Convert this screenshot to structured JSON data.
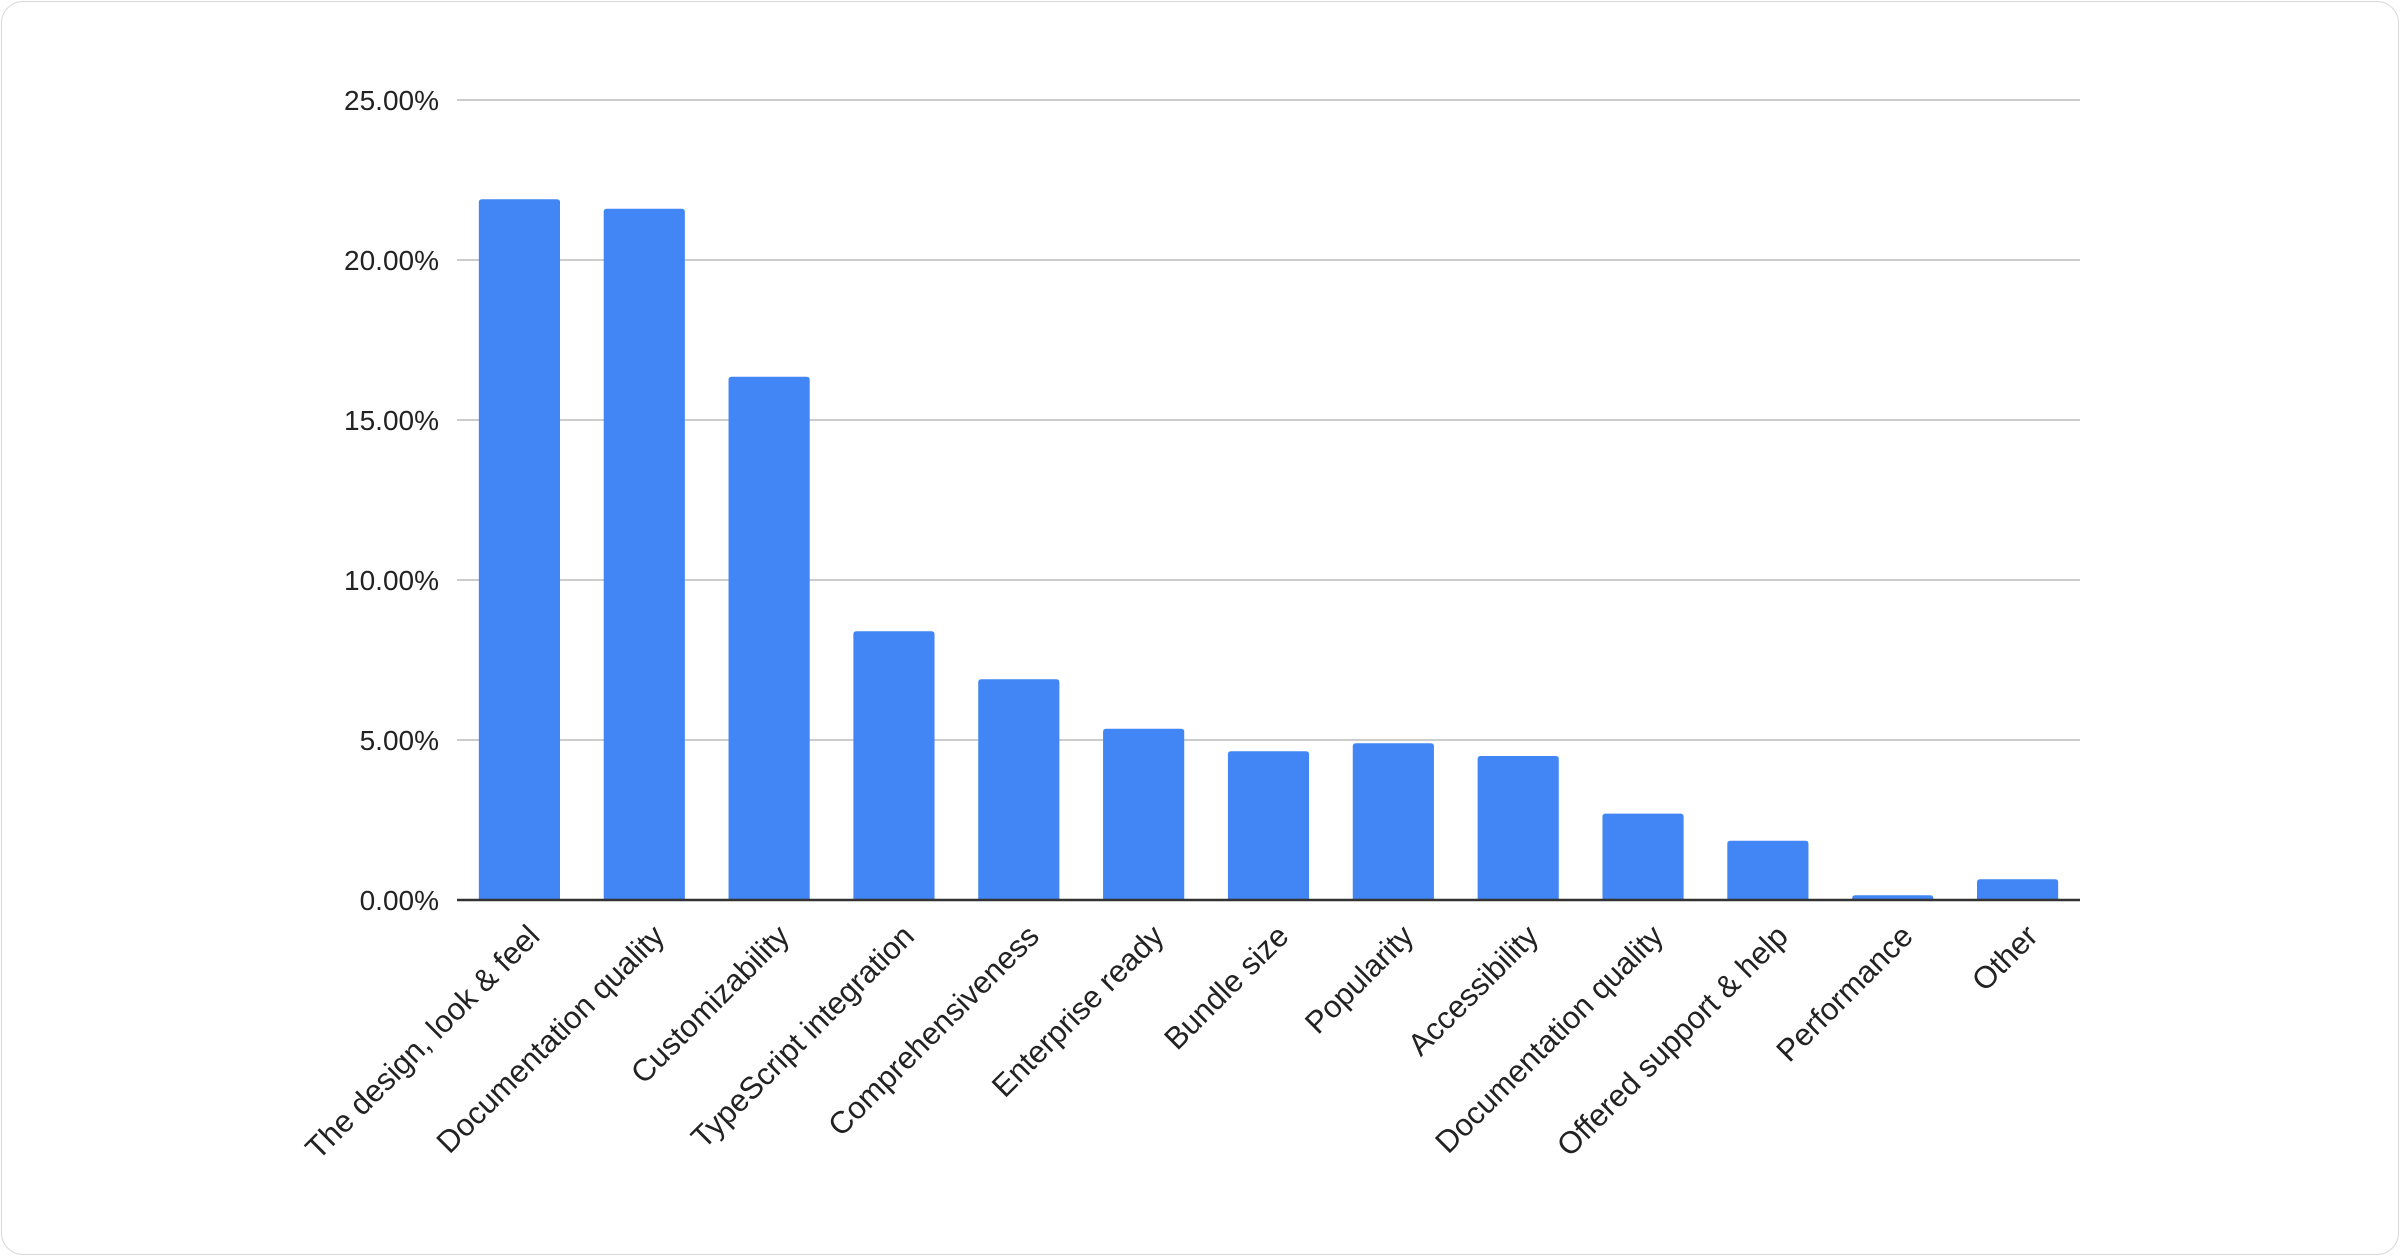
{
  "chart_data": {
    "type": "bar",
    "title": "",
    "xlabel": "",
    "ylabel": "",
    "categories": [
      "The design, look & feel",
      "Documentation quality",
      "Customizability",
      "TypeScript integration",
      "Comprehensiveness",
      "Enterprise ready",
      "Bundle size",
      "Popularity",
      "Accessibility",
      "Documentation quality",
      "Offered support & help",
      "Performance",
      "Other"
    ],
    "values": [
      21.9,
      21.6,
      16.35,
      8.4,
      6.9,
      5.35,
      4.65,
      4.9,
      4.5,
      2.7,
      1.85,
      0.15,
      0.65
    ],
    "ylim": [
      0,
      25
    ],
    "yticks": [
      "0.00%",
      "5.00%",
      "10.00%",
      "15.00%",
      "20.00%",
      "25.00%"
    ],
    "grid": true,
    "bar_color": "#4285f4",
    "legend": "none"
  }
}
